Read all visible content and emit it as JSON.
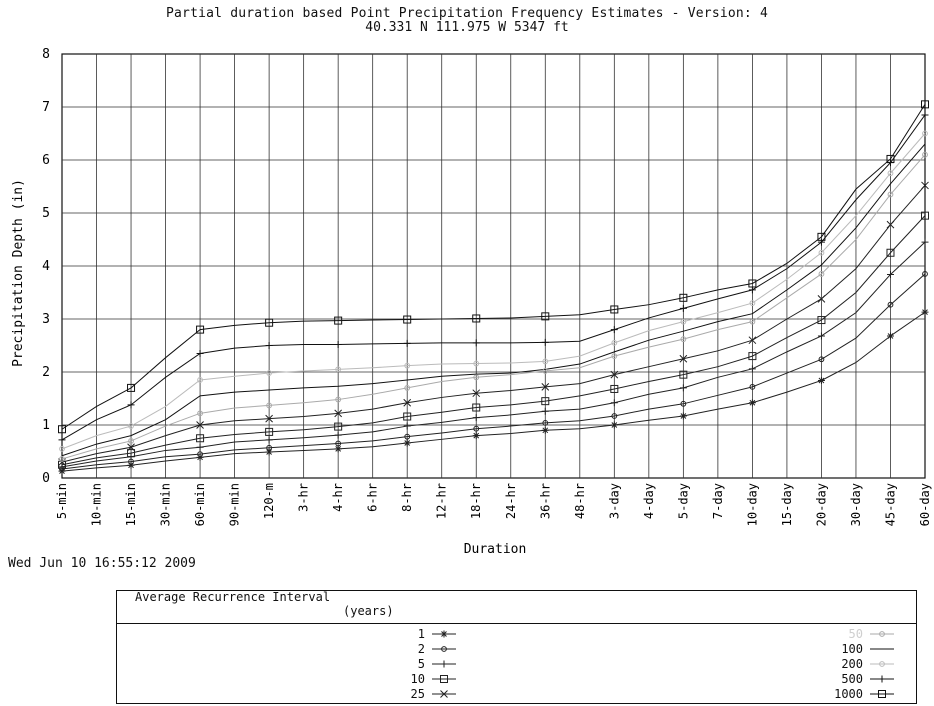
{
  "chart_data": {
    "type": "line",
    "title": "Partial duration based Point Precipitation Frequency Estimates - Version: 4",
    "subtitle": "40.331 N 111.975 W 5347 ft",
    "xlabel": "Duration",
    "ylabel": "Precipitation Depth (in)",
    "ylim": [
      0,
      8
    ],
    "yticks": [
      0,
      1,
      2,
      3,
      4,
      5,
      6,
      7,
      8
    ],
    "grid": true,
    "x": [
      "5-min",
      "10-min",
      "15-min",
      "30-min",
      "60-min",
      "90-min",
      "120-m",
      "3-hr",
      "4-hr",
      "6-hr",
      "8-hr",
      "12-hr",
      "18-hr",
      "24-hr",
      "36-hr",
      "48-hr",
      "3-day",
      "4-day",
      "5-day",
      "7-day",
      "10-day",
      "15-day",
      "20-day",
      "30-day",
      "45-day",
      "60-day"
    ],
    "series": [
      {
        "name": "1",
        "marker": "asterisk",
        "color": "#222222",
        "values": [
          0.13,
          0.19,
          0.24,
          0.32,
          0.39,
          0.46,
          0.49,
          0.52,
          0.55,
          0.59,
          0.66,
          0.73,
          0.8,
          0.84,
          0.9,
          0.93,
          1.0,
          1.09,
          1.17,
          1.3,
          1.42,
          1.62,
          1.84,
          2.18,
          2.68,
          3.13
        ]
      },
      {
        "name": "2",
        "marker": "diamond",
        "color": "#222222",
        "values": [
          0.17,
          0.25,
          0.31,
          0.4,
          0.45,
          0.53,
          0.57,
          0.61,
          0.65,
          0.7,
          0.78,
          0.85,
          0.93,
          0.98,
          1.04,
          1.08,
          1.17,
          1.3,
          1.4,
          1.56,
          1.72,
          1.98,
          2.24,
          2.64,
          3.27,
          3.85
        ]
      },
      {
        "name": "5",
        "marker": "plus",
        "color": "#222222",
        "values": [
          0.21,
          0.32,
          0.4,
          0.52,
          0.58,
          0.68,
          0.72,
          0.76,
          0.81,
          0.87,
          0.98,
          1.05,
          1.14,
          1.19,
          1.26,
          1.3,
          1.42,
          1.58,
          1.7,
          1.9,
          2.06,
          2.38,
          2.68,
          3.12,
          3.84,
          4.45
        ]
      },
      {
        "name": "10",
        "marker": "square",
        "color": "#222222",
        "values": [
          0.25,
          0.38,
          0.47,
          0.62,
          0.75,
          0.82,
          0.87,
          0.91,
          0.97,
          1.04,
          1.16,
          1.24,
          1.33,
          1.38,
          1.45,
          1.55,
          1.68,
          1.82,
          1.95,
          2.1,
          2.3,
          2.65,
          2.98,
          3.5,
          4.25,
          4.95
        ]
      },
      {
        "name": "25",
        "marker": "x",
        "color": "#222222",
        "values": [
          0.3,
          0.46,
          0.58,
          0.8,
          1.0,
          1.08,
          1.12,
          1.16,
          1.22,
          1.3,
          1.42,
          1.52,
          1.6,
          1.65,
          1.72,
          1.78,
          1.95,
          2.1,
          2.25,
          2.4,
          2.6,
          3.0,
          3.38,
          3.95,
          4.78,
          5.52
        ]
      },
      {
        "name": "50",
        "marker": "diamond",
        "color": "#aaaaaa",
        "values": [
          0.36,
          0.55,
          0.7,
          0.98,
          1.22,
          1.32,
          1.37,
          1.42,
          1.48,
          1.58,
          1.7,
          1.82,
          1.9,
          1.95,
          2.02,
          2.08,
          2.3,
          2.47,
          2.62,
          2.8,
          2.95,
          3.4,
          3.85,
          4.5,
          5.35,
          6.1
        ]
      },
      {
        "name": "100",
        "marker": "none",
        "color": "#111111",
        "values": [
          0.42,
          0.64,
          0.8,
          1.1,
          1.55,
          1.62,
          1.66,
          1.7,
          1.73,
          1.78,
          1.85,
          1.92,
          1.96,
          1.98,
          2.05,
          2.15,
          2.38,
          2.6,
          2.77,
          2.95,
          3.1,
          3.55,
          4.02,
          4.72,
          5.55,
          6.3
        ]
      },
      {
        "name": "200",
        "marker": "diamond",
        "color": "#bbbbbb",
        "values": [
          0.55,
          0.8,
          0.98,
          1.35,
          1.85,
          1.92,
          1.98,
          2.02,
          2.05,
          2.08,
          2.12,
          2.15,
          2.16,
          2.17,
          2.2,
          2.3,
          2.55,
          2.78,
          2.95,
          3.12,
          3.3,
          3.75,
          4.25,
          4.95,
          5.75,
          6.5
        ]
      },
      {
        "name": "500",
        "marker": "plus",
        "color": "#111111",
        "values": [
          0.72,
          1.1,
          1.38,
          1.9,
          2.35,
          2.45,
          2.5,
          2.52,
          2.52,
          2.53,
          2.54,
          2.55,
          2.55,
          2.55,
          2.56,
          2.58,
          2.8,
          3.02,
          3.2,
          3.38,
          3.55,
          3.95,
          4.45,
          5.25,
          5.95,
          6.85
        ]
      },
      {
        "name": "1000",
        "marker": "square",
        "color": "#111111",
        "values": [
          0.92,
          1.35,
          1.7,
          2.27,
          2.8,
          2.88,
          2.93,
          2.96,
          2.97,
          2.98,
          2.99,
          3.0,
          3.01,
          3.02,
          3.05,
          3.08,
          3.18,
          3.27,
          3.4,
          3.55,
          3.67,
          4.05,
          4.55,
          5.45,
          6.02,
          7.05
        ]
      }
    ]
  },
  "timestamp": "Wed Jun 10 16:55:12 2009",
  "legend": {
    "title_line1": "Average Recurrence Interval",
    "title_line2": "(years)",
    "left_labels": [
      "1",
      "2",
      "5",
      "10",
      "25"
    ],
    "right_labels": [
      "50",
      "100",
      "200",
      "500",
      "1000"
    ]
  }
}
